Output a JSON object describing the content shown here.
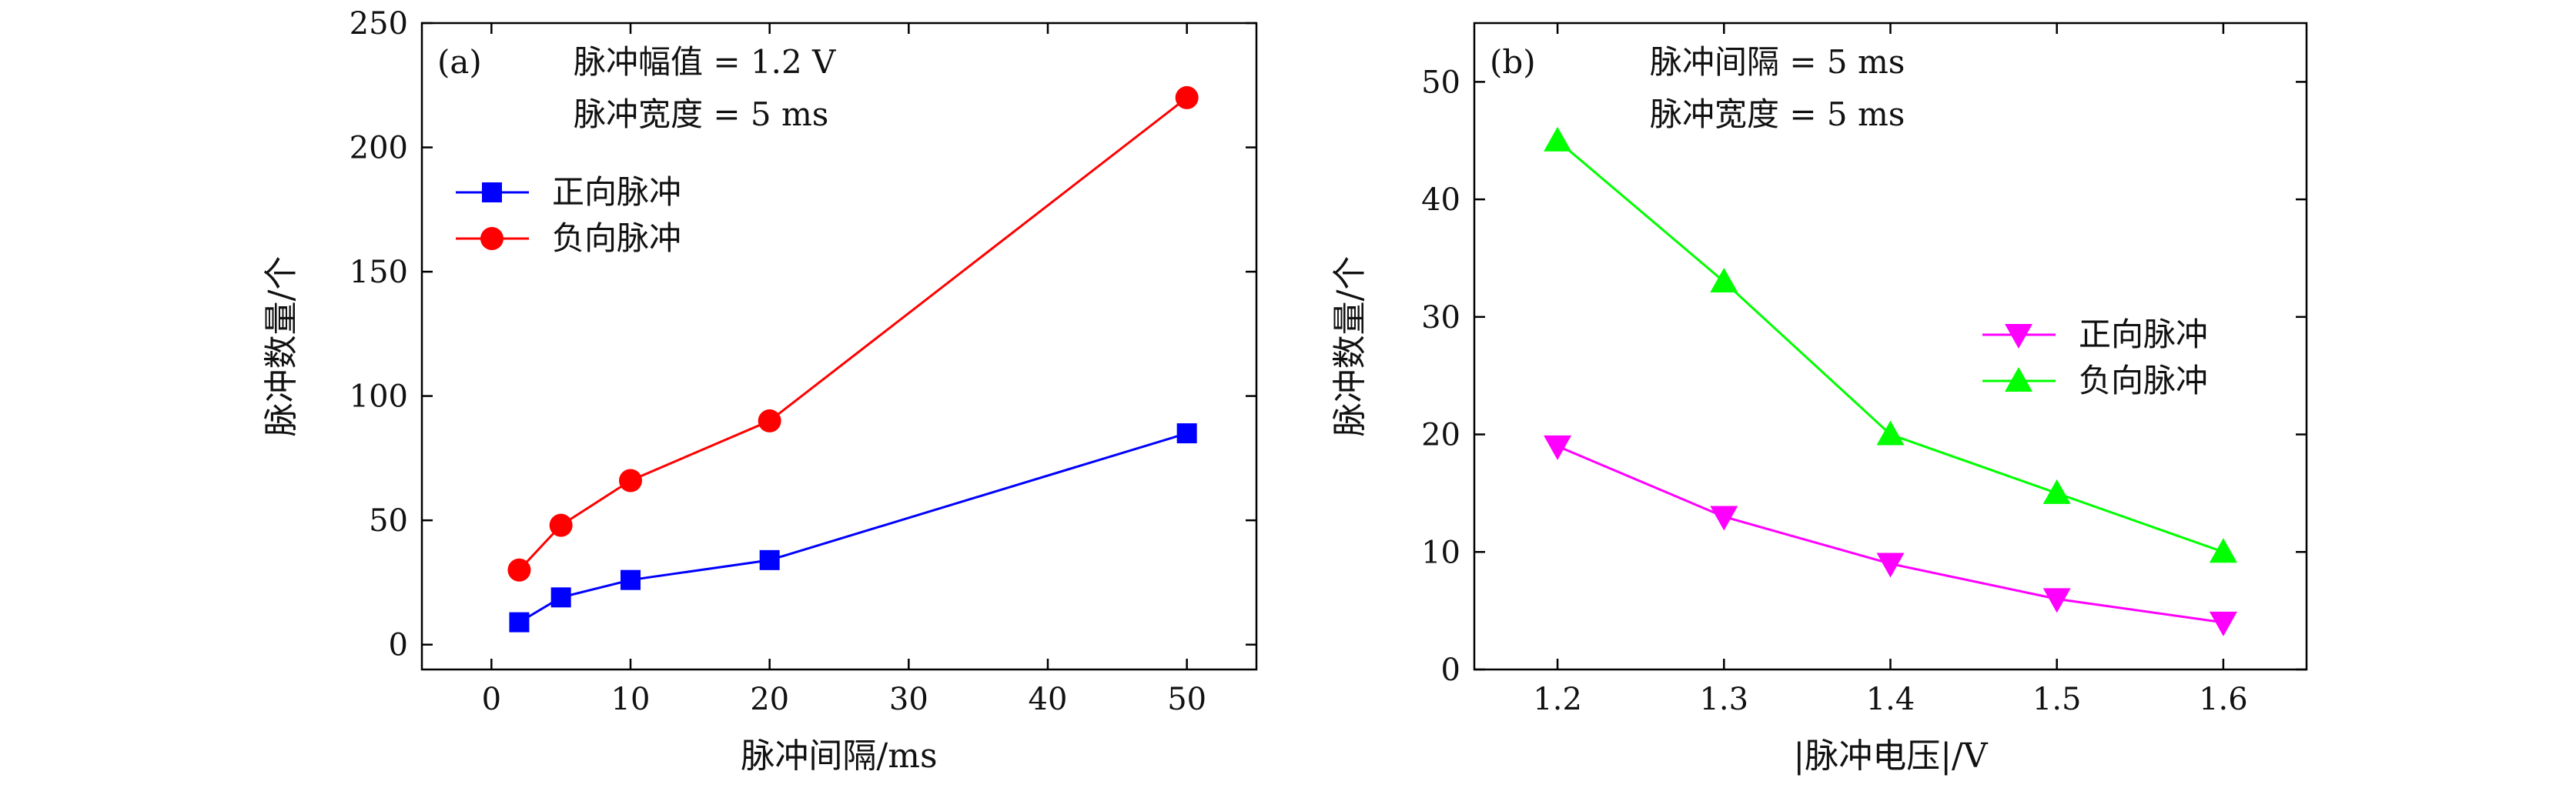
{
  "chart_data": [
    {
      "type": "line",
      "panel_label": "(a)",
      "annotations": [
        "脉冲幅值 = 1.2 V",
        "脉冲宽度 = 5 ms"
      ],
      "xlabel": "脉冲间隔/ms",
      "ylabel": "脉冲数量/个",
      "xlim": [
        -5,
        55
      ],
      "ylim": [
        -10,
        250
      ],
      "xticks": [
        0,
        10,
        20,
        30,
        40,
        50
      ],
      "yticks": [
        0,
        50,
        100,
        150,
        200,
        250
      ],
      "legend_position": "upper-left",
      "series": [
        {
          "name": "正向脉冲",
          "color": "#0000ff",
          "marker": "square",
          "x": [
            2,
            5,
            10,
            20,
            50
          ],
          "y": [
            9,
            19,
            26,
            34,
            85
          ]
        },
        {
          "name": "负向脉冲",
          "color": "#ff0000",
          "marker": "circle",
          "x": [
            2,
            5,
            10,
            20,
            50
          ],
          "y": [
            30,
            48,
            66,
            90,
            220
          ]
        }
      ]
    },
    {
      "type": "line",
      "panel_label": "(b)",
      "annotations": [
        "脉冲间隔 = 5 ms",
        "脉冲宽度 = 5 ms"
      ],
      "xlabel": "|脉冲电压|/V",
      "ylabel": "脉冲数量/个",
      "xlim": [
        1.15,
        1.65
      ],
      "ylim": [
        0,
        55
      ],
      "xticks": [
        1.2,
        1.3,
        1.4,
        1.5,
        1.6
      ],
      "yticks": [
        0,
        10,
        20,
        30,
        40,
        50
      ],
      "legend_position": "right-middle",
      "series": [
        {
          "name": "正向脉冲",
          "color": "#ff00ff",
          "marker": "triangle-down",
          "x": [
            1.2,
            1.3,
            1.4,
            1.5,
            1.6
          ],
          "y": [
            19,
            13,
            9,
            6,
            4
          ]
        },
        {
          "name": "负向脉冲",
          "color": "#00ff00",
          "marker": "triangle-up",
          "x": [
            1.2,
            1.3,
            1.4,
            1.5,
            1.6
          ],
          "y": [
            45,
            33,
            20,
            15,
            10
          ]
        }
      ]
    }
  ]
}
